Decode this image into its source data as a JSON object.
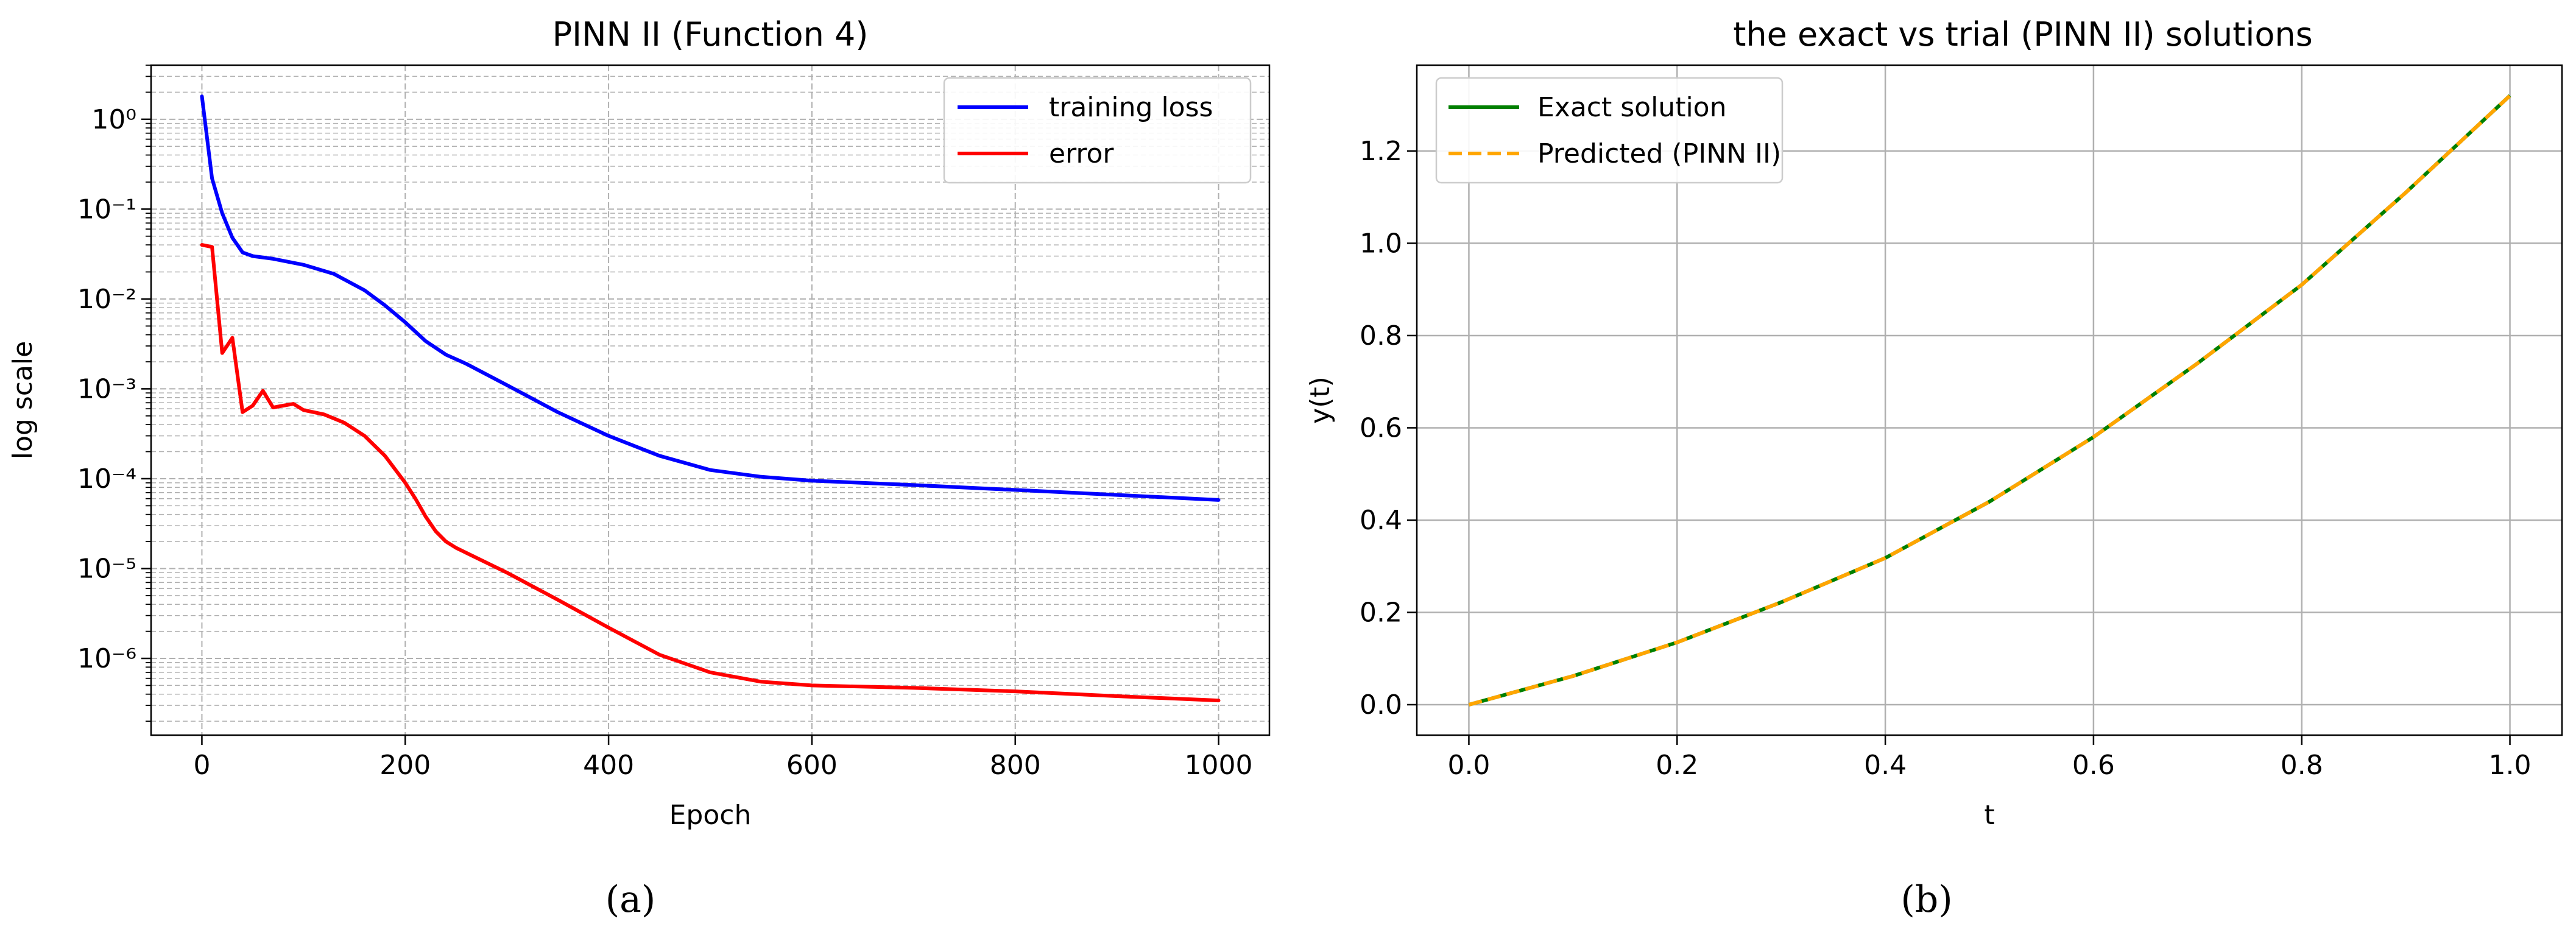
{
  "chart_data": [
    {
      "type": "line",
      "title": "PINN II (Function 4)",
      "xlabel": "Epoch",
      "ylabel": "log scale",
      "yscale": "log",
      "xlim": [
        -50,
        1050
      ],
      "ylim": [
        1.4e-07,
        4.0
      ],
      "xticks": [
        0,
        200,
        400,
        600,
        800,
        1000
      ],
      "xtick_labels": [
        "0",
        "200",
        "400",
        "600",
        "800",
        "1000"
      ],
      "yticks": [
        1e-06,
        1e-05,
        0.0001,
        0.001,
        0.01,
        0.1,
        1
      ],
      "ytick_labels": [
        "10⁻⁶",
        "10⁻⁵",
        "10⁻⁴",
        "10⁻³",
        "10⁻²",
        "10⁻¹",
        "10⁰"
      ],
      "grid": "dashed, major and minor",
      "legend_position": "upper right",
      "series": [
        {
          "name": "training loss",
          "color": "#0000ff",
          "x": [
            0,
            10,
            20,
            30,
            40,
            50,
            70,
            100,
            130,
            160,
            180,
            200,
            220,
            240,
            260,
            300,
            350,
            400,
            450,
            500,
            550,
            600,
            700,
            800,
            900,
            1000
          ],
          "y": [
            1.8,
            0.22,
            0.09,
            0.048,
            0.033,
            0.03,
            0.028,
            0.024,
            0.019,
            0.0125,
            0.0085,
            0.0055,
            0.0034,
            0.0024,
            0.0019,
            0.0011,
            0.00055,
            0.0003,
            0.00018,
            0.000125,
            0.000105,
            9.5e-05,
            8.5e-05,
            7.5e-05,
            6.6e-05,
            5.8e-05
          ]
        },
        {
          "name": "error",
          "color": "#ff0000",
          "x": [
            0,
            10,
            20,
            30,
            40,
            50,
            60,
            70,
            80,
            90,
            100,
            120,
            140,
            160,
            180,
            200,
            210,
            220,
            230,
            240,
            250,
            300,
            350,
            400,
            450,
            500,
            550,
            600,
            700,
            800,
            900,
            1000
          ],
          "y": [
            0.04,
            0.038,
            0.0025,
            0.0037,
            0.00055,
            0.00065,
            0.00095,
            0.00062,
            0.00065,
            0.00068,
            0.00058,
            0.00052,
            0.00042,
            0.0003,
            0.00018,
            9e-05,
            6e-05,
            3.8e-05,
            2.6e-05,
            2e-05,
            1.7e-05,
            9e-06,
            4.5e-06,
            2.2e-06,
            1.1e-06,
            7e-07,
            5.5e-07,
            5e-07,
            4.7e-07,
            4.3e-07,
            3.8e-07,
            3.4e-07
          ]
        }
      ]
    },
    {
      "type": "line",
      "title": "the exact vs trial (PINN II) solutions",
      "xlabel": "t",
      "ylabel": "y(t)",
      "xlim": [
        -0.05,
        1.05
      ],
      "ylim": [
        -0.066,
        1.386
      ],
      "xticks": [
        0.0,
        0.2,
        0.4,
        0.6,
        0.8,
        1.0
      ],
      "xtick_labels": [
        "0.0",
        "0.2",
        "0.4",
        "0.6",
        "0.8",
        "1.0"
      ],
      "yticks": [
        0.0,
        0.2,
        0.4,
        0.6,
        0.8,
        1.0,
        1.2
      ],
      "ytick_labels": [
        "0.0",
        "0.2",
        "0.4",
        "0.6",
        "0.8",
        "1.0",
        "1.2"
      ],
      "grid": "solid, major",
      "legend_position": "upper left",
      "series": [
        {
          "name": "Exact solution",
          "color": "#008000",
          "dash": "solid",
          "x": [
            0,
            0.1,
            0.2,
            0.3,
            0.4,
            0.5,
            0.6,
            0.7,
            0.8,
            0.9,
            1.0
          ],
          "y": [
            0,
            0.062,
            0.135,
            0.222,
            0.318,
            0.44,
            0.58,
            0.74,
            0.91,
            1.11,
            1.32
          ]
        },
        {
          "name": "Predicted (PINN II)",
          "color": "#ffa500",
          "dash": "dashed",
          "x": [
            0,
            0.1,
            0.2,
            0.3,
            0.4,
            0.5,
            0.6,
            0.7,
            0.8,
            0.9,
            1.0
          ],
          "y": [
            0,
            0.062,
            0.135,
            0.222,
            0.318,
            0.44,
            0.58,
            0.74,
            0.91,
            1.11,
            1.32
          ]
        }
      ]
    }
  ],
  "captions": [
    "(a)",
    "(b)"
  ]
}
